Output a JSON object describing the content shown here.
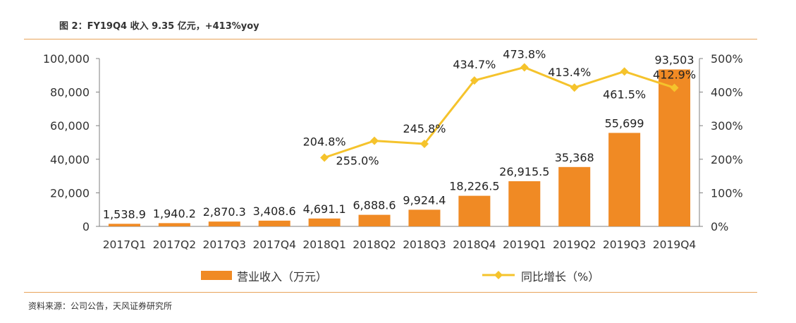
{
  "title": "图 2：FY19Q4 收入 9.35 亿元，+413%yoy",
  "source": "资料来源：公司公告，天风证券研究所",
  "colors": {
    "bar": "#f08a24",
    "line": "#f5c32c",
    "axis": "#7f7f7f",
    "rule": "#e8a45a",
    "text": "#333333"
  },
  "chart_data": {
    "type": "bar+line",
    "categories": [
      "2017Q1",
      "2017Q2",
      "2017Q3",
      "2017Q4",
      "2018Q1",
      "2018Q2",
      "2018Q3",
      "2018Q4",
      "2019Q1",
      "2019Q2",
      "2019Q3",
      "2019Q4"
    ],
    "series": [
      {
        "name": "营业收入（万元）",
        "type": "bar",
        "axis": "left",
        "values": [
          1538.9,
          1940.2,
          2870.3,
          3408.6,
          4691.1,
          6888.6,
          9924.4,
          18226.5,
          26915.5,
          35368,
          55699,
          93503
        ],
        "labels": [
          "1,538.9",
          "1,940.2",
          "2,870.3",
          "3,408.6",
          "4,691.1",
          "6,888.6",
          "9,924.4",
          "18,226.5",
          "26,915.5",
          "35,368",
          "55,699",
          "93,503"
        ]
      },
      {
        "name": "同比增长（%）",
        "type": "line",
        "axis": "right",
        "values": [
          null,
          null,
          null,
          null,
          204.8,
          255.0,
          245.8,
          434.7,
          473.8,
          413.4,
          461.5,
          412.9
        ],
        "labels": [
          "",
          "",
          "",
          "",
          "204.8%",
          "255.0%",
          "245.8%",
          "434.7%",
          "473.8%",
          "413.4%",
          "461.5%",
          "412.9%"
        ]
      }
    ],
    "y_left": {
      "min": 0,
      "max": 100000,
      "ticks": [
        0,
        20000,
        40000,
        60000,
        80000,
        100000
      ],
      "tick_labels": [
        "0",
        "20,000",
        "40,000",
        "60,000",
        "80,000",
        "100,000"
      ]
    },
    "y_right": {
      "min": 0,
      "max": 500,
      "ticks": [
        0,
        100,
        200,
        300,
        400,
        500
      ],
      "tick_labels": [
        "0%",
        "100%",
        "200%",
        "300%",
        "400%",
        "500%"
      ]
    },
    "grid": false,
    "legend": "bottom-center"
  }
}
